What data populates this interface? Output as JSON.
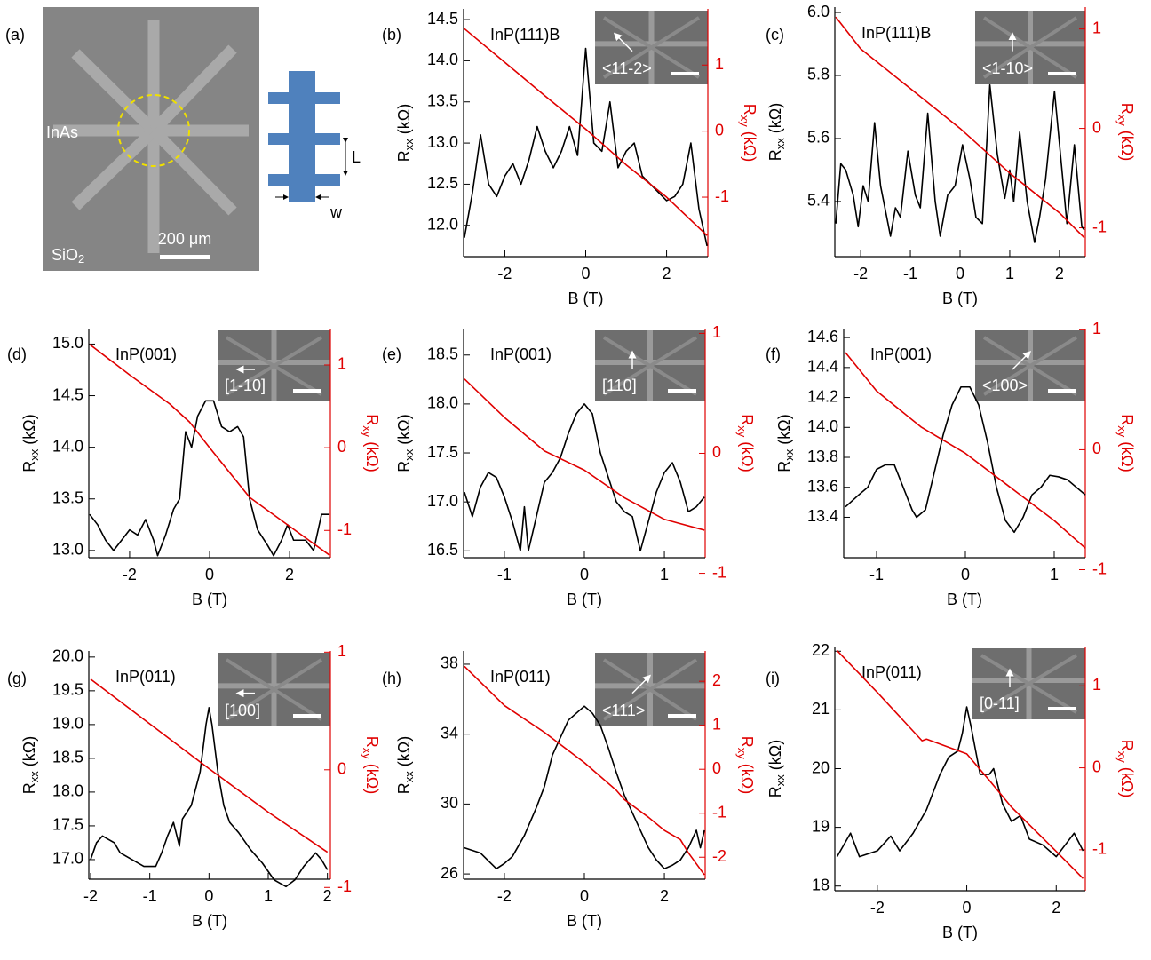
{
  "panel_a": {
    "label": "(a)",
    "material": "InAs",
    "substrate": [
      "SiO",
      "2"
    ],
    "scale": "200 μm",
    "length": "L",
    "width": "w"
  },
  "chart_data": [
    {
      "type": "line",
      "panel": "(b)",
      "sample": "InP(111)B",
      "direction": "<11-2>",
      "xlabel": "B (T)",
      "ylabel": [
        "R",
        "xx",
        " (kΩ)"
      ],
      "y2label": [
        "R",
        "xy",
        " (kΩ)"
      ],
      "xlim": [
        -3.02,
        3.02
      ],
      "xticks": [
        -2,
        0,
        2
      ],
      "ylim": [
        11.62,
        14.63
      ],
      "yticks": [
        {
          "value": 12,
          "label": "12.0"
        },
        12.5,
        {
          "value": 13,
          "label": "13.0"
        },
        13.5,
        {
          "value": 14,
          "label": "14.0"
        },
        14.5
      ],
      "y2lim": [
        -1.9,
        1.85
      ],
      "y2ticks": [
        -1,
        0,
        1
      ],
      "series": [
        {
          "color": "#000000",
          "x": [
            -3,
            -2.8,
            -2.6,
            -2.4,
            -2.2,
            -2,
            -1.8,
            -1.6,
            -1.4,
            -1.2,
            -1,
            -0.8,
            -0.6,
            -0.4,
            -0.2,
            0,
            0.2,
            0.4,
            0.6,
            0.8,
            1,
            1.2,
            1.4,
            1.6,
            1.8,
            2,
            2.2,
            2.4,
            2.6,
            2.8,
            3
          ],
          "values": [
            11.85,
            12.4,
            13.1,
            12.5,
            12.35,
            12.6,
            12.75,
            12.5,
            12.8,
            13.2,
            12.9,
            12.7,
            12.9,
            13.2,
            12.85,
            14.15,
            13.0,
            12.9,
            13.5,
            12.7,
            12.9,
            13.0,
            12.6,
            12.5,
            12.4,
            12.3,
            12.35,
            12.5,
            13.0,
            12.2,
            11.75
          ]
        },
        {
          "color": "#e00000",
          "axis": "y2",
          "x": [
            -3,
            -2,
            -1,
            0,
            1,
            2,
            3
          ],
          "values": [
            1.55,
            1.04,
            0.53,
            0.03,
            -0.51,
            -1.0,
            -1.58
          ]
        }
      ]
    },
    {
      "type": "line",
      "panel": "(c)",
      "sample": "InP(111)B",
      "direction": "<1-10>",
      "xlabel": "B (T)",
      "ylabel": [
        "R",
        "xx",
        " (kΩ)"
      ],
      "y2label": [
        "R",
        "xy",
        " (kΩ)"
      ],
      "xlim": [
        -2.52,
        2.52
      ],
      "xticks": [
        -2,
        -1,
        0,
        1,
        2
      ],
      "ylim": [
        5.225,
        6.017
      ],
      "yticks": [
        5.4,
        5.6,
        5.8,
        {
          "value": 6,
          "label": "6.0"
        }
      ],
      "y2lim": [
        -1.29,
        1.22
      ],
      "y2ticks": [
        -1,
        0,
        1
      ],
      "series": [
        {
          "color": "#000000",
          "x": [
            -2.5,
            -2.4,
            -2.3,
            -2.15,
            -2.05,
            -1.95,
            -1.85,
            -1.72,
            -1.6,
            -1.4,
            -1.3,
            -1.2,
            -1.05,
            -0.9,
            -0.8,
            -0.65,
            -0.5,
            -0.4,
            -0.25,
            -0.1,
            0.05,
            0.2,
            0.32,
            0.45,
            0.6,
            0.75,
            0.9,
            1.0,
            1.08,
            1.2,
            1.35,
            1.5,
            1.6,
            1.72,
            1.9,
            2.05,
            2.15,
            2.3,
            2.45,
            2.5
          ],
          "values": [
            5.33,
            5.52,
            5.5,
            5.42,
            5.32,
            5.45,
            5.4,
            5.65,
            5.45,
            5.29,
            5.38,
            5.35,
            5.56,
            5.42,
            5.38,
            5.68,
            5.4,
            5.29,
            5.42,
            5.45,
            5.58,
            5.47,
            5.35,
            5.33,
            5.77,
            5.55,
            5.41,
            5.5,
            5.4,
            5.62,
            5.4,
            5.27,
            5.35,
            5.47,
            5.75,
            5.5,
            5.33,
            5.58,
            5.32,
            5.31
          ]
        },
        {
          "color": "#e00000",
          "axis": "y2",
          "x": [
            -2.5,
            -2,
            -1,
            0,
            1,
            2,
            2.5
          ],
          "values": [
            1.12,
            0.8,
            0.4,
            0,
            -0.45,
            -0.85,
            -1.1
          ]
        }
      ]
    },
    {
      "type": "line",
      "panel": "(d)",
      "sample": "InP(001)",
      "direction": "[1-10]",
      "xlabel": "B (T)",
      "ylabel": [
        "R",
        "xx",
        " (kΩ)"
      ],
      "y2label": [
        "R",
        "xy",
        " (kΩ)"
      ],
      "xlim": [
        -3.02,
        3.02
      ],
      "xticks": [
        -2,
        0,
        2
      ],
      "ylim": [
        12.93,
        15.15
      ],
      "yticks": [
        {
          "value": 13,
          "label": "13.0"
        },
        13.5,
        {
          "value": 14,
          "label": "14.0"
        },
        14.5,
        {
          "value": 15,
          "label": "15.0"
        }
      ],
      "y2lim": [
        -1.33,
        1.44
      ],
      "y2ticks": [
        -1,
        0,
        1
      ],
      "series": [
        {
          "color": "#000000",
          "x": [
            -3,
            -2.8,
            -2.6,
            -2.4,
            -2.2,
            -2,
            -1.8,
            -1.6,
            -1.4,
            -1.3,
            -1.1,
            -0.9,
            -0.75,
            -0.6,
            -0.45,
            -0.3,
            -0.1,
            0.1,
            0.3,
            0.5,
            0.7,
            0.85,
            1,
            1.2,
            1.45,
            1.6,
            1.8,
            1.95,
            2.1,
            2.4,
            2.6,
            2.8,
            3
          ],
          "values": [
            13.35,
            13.25,
            13.1,
            13.0,
            13.1,
            13.2,
            13.15,
            13.3,
            13.1,
            12.95,
            13.15,
            13.4,
            13.5,
            14.15,
            14.0,
            14.3,
            14.45,
            14.45,
            14.2,
            14.15,
            14.2,
            14.1,
            13.5,
            13.2,
            13.05,
            12.95,
            13.1,
            13.25,
            13.1,
            13.1,
            13.0,
            13.35,
            13.35
          ]
        },
        {
          "color": "#e00000",
          "axis": "y2",
          "x": [
            -3,
            -2,
            -1,
            -0.5,
            0,
            1,
            2,
            3
          ],
          "values": [
            1.25,
            0.88,
            0.53,
            0.31,
            0,
            -0.6,
            -0.95,
            -1.3
          ]
        }
      ]
    },
    {
      "type": "line",
      "panel": "(e)",
      "sample": "InP(001)",
      "direction": "[110]",
      "xlabel": "B (T)",
      "ylabel": [
        "R",
        "xx",
        " (kΩ)"
      ],
      "y2label": [
        "R",
        "xy",
        " (kΩ)"
      ],
      "xlim": [
        -1.51,
        1.51
      ],
      "xticks": [
        -1,
        0,
        1
      ],
      "ylim": [
        16.43,
        18.77
      ],
      "yticks": [
        16.5,
        {
          "value": 17,
          "label": "17.0"
        },
        17.5,
        {
          "value": 18,
          "label": "18.0"
        },
        18.5
      ],
      "y2lim": [
        -0.87,
        1.04
      ],
      "y2ticks": [
        -1,
        0,
        1
      ],
      "series": [
        {
          "color": "#000000",
          "x": [
            -1.5,
            -1.4,
            -1.3,
            -1.2,
            -1.1,
            -1,
            -0.9,
            -0.8,
            -0.75,
            -0.7,
            -0.6,
            -0.5,
            -0.4,
            -0.3,
            -0.2,
            -0.1,
            0,
            0.1,
            0.2,
            0.3,
            0.4,
            0.5,
            0.6,
            0.7,
            0.8,
            0.9,
            1,
            1.1,
            1.2,
            1.3,
            1.4,
            1.5
          ],
          "values": [
            17.1,
            16.85,
            17.15,
            17.3,
            17.25,
            17.05,
            16.8,
            16.5,
            16.95,
            16.5,
            16.85,
            17.2,
            17.3,
            17.45,
            17.7,
            17.9,
            18.0,
            17.9,
            17.5,
            17.25,
            17.0,
            16.9,
            16.85,
            16.5,
            16.8,
            17.1,
            17.3,
            17.4,
            17.2,
            16.9,
            16.95,
            17.05
          ]
        },
        {
          "color": "#e00000",
          "axis": "y2",
          "x": [
            -1.5,
            -1,
            -0.5,
            0,
            0.5,
            1,
            1.5
          ],
          "values": [
            0.62,
            0.3,
            0.02,
            -0.14,
            -0.37,
            -0.55,
            -0.64
          ]
        }
      ]
    },
    {
      "type": "line",
      "panel": "(f)",
      "sample": "InP(001)",
      "direction": "<100>",
      "xlabel": "B (T)",
      "ylabel": [
        "R",
        "xx",
        " (kΩ)"
      ],
      "y2label": [
        "R",
        "xy",
        " (kΩ)"
      ],
      "xlim": [
        -1.37,
        1.35
      ],
      "xticks": [
        -1,
        0,
        1
      ],
      "ylim": [
        13.13,
        14.66
      ],
      "yticks": [
        13.4,
        13.6,
        13.8,
        {
          "value": 14,
          "label": "14.0"
        },
        14.2,
        14.4,
        14.6
      ],
      "y2lim": [
        -0.9,
        1.01
      ],
      "y2ticks": [
        -1,
        0,
        1
      ],
      "series": [
        {
          "color": "#000000",
          "x": [
            -1.35,
            -1.2,
            -1.1,
            -1,
            -0.9,
            -0.8,
            -0.7,
            -0.6,
            -0.55,
            -0.45,
            -0.35,
            -0.25,
            -0.15,
            -0.05,
            0.05,
            0.15,
            0.25,
            0.35,
            0.45,
            0.55,
            0.65,
            0.75,
            0.85,
            0.95,
            1.05,
            1.15,
            1.25,
            1.35
          ],
          "values": [
            13.47,
            13.55,
            13.6,
            13.72,
            13.75,
            13.75,
            13.6,
            13.45,
            13.4,
            13.45,
            13.7,
            13.95,
            14.15,
            14.27,
            14.27,
            14.15,
            13.9,
            13.6,
            13.38,
            13.3,
            13.4,
            13.55,
            13.6,
            13.68,
            13.67,
            13.65,
            13.6,
            13.55
          ]
        },
        {
          "color": "#e00000",
          "axis": "y2",
          "x": [
            -1.35,
            -1,
            -0.5,
            0,
            0.5,
            1,
            1.35
          ],
          "values": [
            0.81,
            0.49,
            0.19,
            -0.03,
            -0.31,
            -0.59,
            -0.82
          ]
        }
      ]
    },
    {
      "type": "line",
      "panel": "(g)",
      "sample": "InP(011)",
      "direction": "[100]",
      "xlabel": "B (T)",
      "ylabel": [
        "R",
        "xx",
        " (kΩ)"
      ],
      "y2label": [
        "R",
        "xy",
        " (kΩ)"
      ],
      "xlim": [
        -2.03,
        2.05
      ],
      "xticks": [
        -2,
        -1,
        0,
        1,
        2
      ],
      "ylim": [
        16.71,
        20.09
      ],
      "yticks": [
        {
          "value": 17,
          "label": "17.0"
        },
        17.5,
        {
          "value": 18,
          "label": "18.0"
        },
        18.5,
        {
          "value": 19,
          "label": "19.0"
        },
        19.5,
        {
          "value": 20,
          "label": "20.0"
        }
      ],
      "y2lim": [
        -0.93,
        1.01
      ],
      "y2ticks": [
        -1,
        0,
        1
      ],
      "series": [
        {
          "color": "#000000",
          "x": [
            -2,
            -1.9,
            -1.8,
            -1.7,
            -1.6,
            -1.5,
            -1.3,
            -1.1,
            -0.9,
            -0.8,
            -0.7,
            -0.6,
            -0.5,
            -0.45,
            -0.3,
            -0.15,
            -0.05,
            0,
            0.05,
            0.15,
            0.25,
            0.35,
            0.5,
            0.7,
            0.9,
            1.1,
            1.3,
            1.45,
            1.6,
            1.8,
            1.9,
            2
          ],
          "values": [
            17.0,
            17.25,
            17.35,
            17.3,
            17.25,
            17.1,
            17.0,
            16.9,
            16.9,
            17.1,
            17.35,
            17.55,
            17.2,
            17.6,
            17.8,
            18.3,
            19.0,
            19.25,
            19.0,
            18.3,
            17.8,
            17.55,
            17.4,
            17.15,
            16.95,
            16.7,
            16.6,
            16.7,
            16.9,
            17.1,
            17.0,
            16.85
          ]
        },
        {
          "color": "#e00000",
          "axis": "y2",
          "x": [
            -2,
            -1,
            0,
            1,
            2
          ],
          "values": [
            0.77,
            0.39,
            0.01,
            -0.36,
            -0.7
          ]
        }
      ]
    },
    {
      "type": "line",
      "panel": "(h)",
      "sample": "InP(011)",
      "direction": "<111>",
      "xlabel": "B (T)",
      "ylabel": [
        "R",
        "xx",
        " (kΩ)"
      ],
      "y2label": [
        "R",
        "xy",
        " (kΩ)"
      ],
      "xlim": [
        -3.02,
        3.02
      ],
      "xticks": [
        -2,
        0,
        2
      ],
      "ylim": [
        25.7,
        38.76
      ],
      "yticks": [
        26,
        30,
        34,
        38
      ],
      "y2lim": [
        -2.5,
        2.69
      ],
      "y2ticks": [
        -2,
        -1,
        0,
        1,
        2
      ],
      "series": [
        {
          "color": "#000000",
          "x": [
            -3,
            -2.6,
            -2.2,
            -2,
            -1.8,
            -1.5,
            -1.2,
            -1,
            -0.8,
            -0.6,
            -0.4,
            -0.2,
            0,
            0.2,
            0.4,
            0.6,
            0.8,
            1,
            1.2,
            1.4,
            1.6,
            1.8,
            2,
            2.2,
            2.4,
            2.6,
            2.8,
            2.9,
            3
          ],
          "values": [
            27.5,
            27.2,
            26.3,
            26.6,
            27.0,
            28.2,
            29.8,
            31.0,
            32.8,
            33.8,
            34.8,
            35.2,
            35.6,
            35.2,
            34.5,
            33.2,
            31.8,
            30.5,
            29.5,
            28.5,
            27.5,
            26.8,
            26.3,
            26.5,
            26.8,
            27.5,
            28.5,
            27.5,
            28.5
          ]
        },
        {
          "color": "#e00000",
          "axis": "y2",
          "x": [
            -3,
            -2,
            -1,
            0,
            0.8,
            1,
            1.6,
            2,
            2.4,
            2.6,
            3
          ],
          "values": [
            2.34,
            1.45,
            0.84,
            0.15,
            -0.48,
            -0.69,
            -1.09,
            -1.39,
            -1.6,
            -1.9,
            -2.4
          ]
        }
      ]
    },
    {
      "type": "line",
      "panel": "(i)",
      "sample": "InP(011)",
      "direction": "[0-11]",
      "xlabel": "B (T)",
      "ylabel": [
        "R",
        "xx",
        " (kΩ)"
      ],
      "y2label": [
        "R",
        "xy",
        " (kΩ)"
      ],
      "xlim": [
        -2.95,
        2.65
      ],
      "xticks": [
        -2,
        0,
        2
      ],
      "ylim": [
        17.92,
        22.08
      ],
      "yticks": [
        18,
        19,
        20,
        21,
        22
      ],
      "y2lim": [
        -1.5,
        1.48
      ],
      "y2ticks": [
        -1,
        0,
        1
      ],
      "series": [
        {
          "color": "#000000",
          "x": [
            -2.9,
            -2.6,
            -2.4,
            -2,
            -1.7,
            -1.5,
            -1.2,
            -0.9,
            -0.6,
            -0.4,
            -0.2,
            -0.1,
            0,
            0.1,
            0.3,
            0.5,
            0.6,
            0.8,
            1,
            1.2,
            1.4,
            1.7,
            2,
            2.2,
            2.4,
            2.6
          ],
          "values": [
            18.5,
            18.9,
            18.5,
            18.6,
            18.85,
            18.6,
            18.9,
            19.3,
            19.9,
            20.2,
            20.3,
            20.6,
            21.05,
            20.7,
            19.9,
            19.9,
            20.0,
            19.4,
            19.1,
            19.2,
            18.8,
            18.7,
            18.5,
            18.7,
            18.9,
            18.6
          ]
        },
        {
          "color": "#e00000",
          "axis": "y2",
          "x": [
            -2.9,
            -2,
            -1,
            -0.9,
            0,
            0.5,
            1,
            2,
            2.6
          ],
          "values": [
            1.43,
            0.92,
            0.33,
            0.35,
            0.17,
            -0.15,
            -0.48,
            -1.02,
            -1.35
          ]
        }
      ]
    }
  ]
}
